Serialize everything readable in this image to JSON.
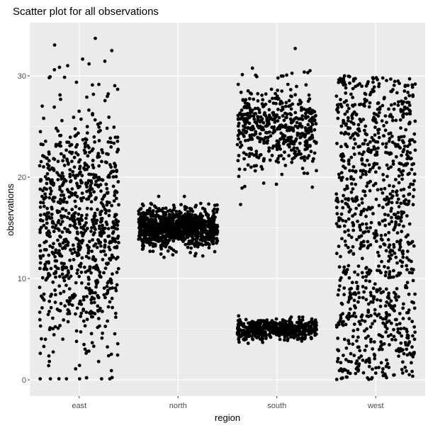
{
  "chart_data": {
    "type": "scatter",
    "title": "Scatter plot for all observations",
    "xlabel": "region",
    "ylabel": "observations",
    "categories": [
      "east",
      "north",
      "south",
      "west"
    ],
    "y_ticks": [
      0,
      10,
      20,
      30
    ],
    "ylim": [
      -0.6,
      35.2
    ],
    "grid": true,
    "legend": "none",
    "point_color": "#000000",
    "panel_background": "#ebebeb",
    "gridline_color": "#ffffff",
    "groups": [
      {
        "category": "east",
        "n_points": 900,
        "y_min": 0.1,
        "y_max": 33.7,
        "y_center": 15,
        "y_spread": 6,
        "notable_points": [
          33.7,
          31.0,
          30.6,
          29.9,
          29.1,
          0.1,
          0.9,
          1.4
        ]
      },
      {
        "category": "north",
        "n_points": 1000,
        "y_min": 11.2,
        "y_max": 18.9,
        "y_center": 15,
        "y_spread": 1
      },
      {
        "category": "south",
        "n_points": 1000,
        "y_min": 3.6,
        "y_max": 32.7,
        "clusters": [
          {
            "y_center": 25,
            "y_spread": 2,
            "n_points": 500
          },
          {
            "y_center": 5,
            "y_spread": 0.5,
            "n_points": 500
          }
        ],
        "notable_points": [
          32.7,
          30.5,
          19.3,
          17.3
        ]
      },
      {
        "category": "west",
        "n_points": 1000,
        "y_min": 0,
        "y_max": 30,
        "distribution": "uniform"
      }
    ]
  }
}
